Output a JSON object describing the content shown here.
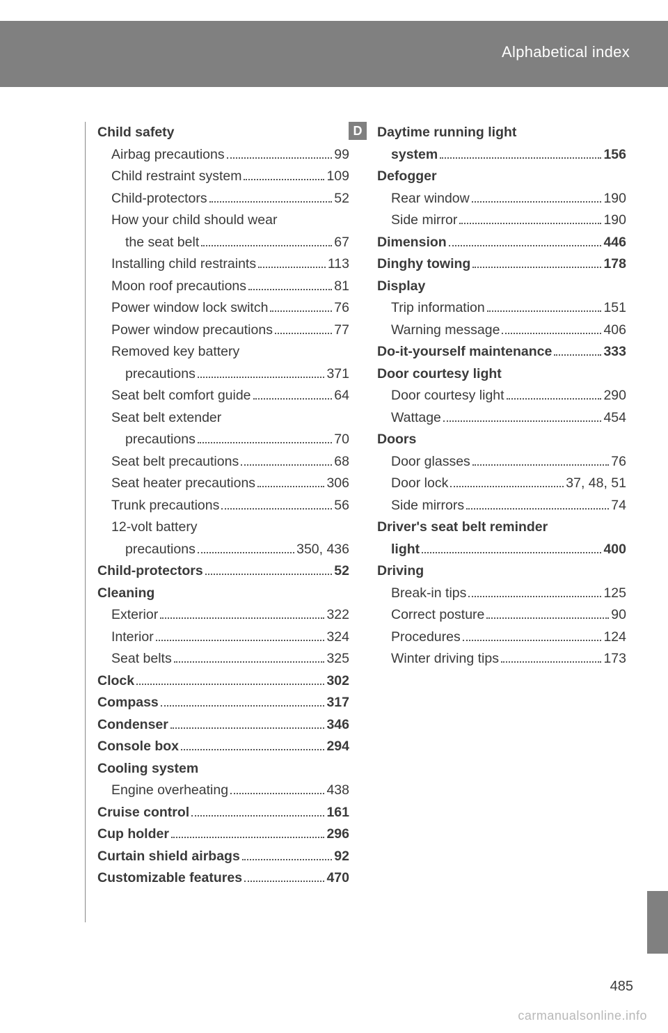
{
  "header": {
    "title": "Alphabetical index"
  },
  "letter": "D",
  "pageNumber": "485",
  "watermark": "carmanualsonline.info",
  "left": [
    {
      "t": "head",
      "label": "Child safety"
    },
    {
      "t": "sub",
      "label": "Airbag precautions",
      "page": "99"
    },
    {
      "t": "sub",
      "label": "Child restraint system",
      "page": "109"
    },
    {
      "t": "sub",
      "label": "Child-protectors",
      "page": "52"
    },
    {
      "t": "sub",
      "label": "How your child should wear"
    },
    {
      "t": "cont",
      "label": "the seat belt",
      "page": "67"
    },
    {
      "t": "sub",
      "label": "Installing child restraints",
      "page": "113"
    },
    {
      "t": "sub",
      "label": "Moon roof precautions",
      "page": "81"
    },
    {
      "t": "sub",
      "label": "Power window lock switch",
      "page": "76"
    },
    {
      "t": "sub",
      "label": "Power window precautions",
      "page": "77"
    },
    {
      "t": "sub",
      "label": "Removed key battery"
    },
    {
      "t": "cont",
      "label": "precautions",
      "page": "371"
    },
    {
      "t": "sub",
      "label": "Seat belt comfort guide",
      "page": "64"
    },
    {
      "t": "sub",
      "label": "Seat belt extender"
    },
    {
      "t": "cont",
      "label": "precautions",
      "page": "70"
    },
    {
      "t": "sub",
      "label": "Seat belt precautions",
      "page": "68"
    },
    {
      "t": "sub",
      "label": "Seat heater precautions",
      "page": "306"
    },
    {
      "t": "sub",
      "label": "Trunk precautions",
      "page": "56"
    },
    {
      "t": "sub",
      "label": "12-volt battery"
    },
    {
      "t": "cont",
      "label": "precautions",
      "page": "350, 436"
    },
    {
      "t": "entry",
      "label": "Child-protectors",
      "page": "52"
    },
    {
      "t": "head",
      "label": "Cleaning"
    },
    {
      "t": "sub",
      "label": "Exterior",
      "page": "322"
    },
    {
      "t": "sub",
      "label": "Interior",
      "page": "324"
    },
    {
      "t": "sub",
      "label": "Seat belts",
      "page": "325"
    },
    {
      "t": "entry",
      "label": "Clock",
      "page": "302"
    },
    {
      "t": "entry",
      "label": "Compass",
      "page": "317"
    },
    {
      "t": "entry",
      "label": "Condenser",
      "page": "346"
    },
    {
      "t": "entry",
      "label": "Console box",
      "page": "294"
    },
    {
      "t": "head",
      "label": "Cooling system"
    },
    {
      "t": "sub",
      "label": "Engine overheating",
      "page": "438"
    },
    {
      "t": "entry",
      "label": "Cruise control",
      "page": "161"
    },
    {
      "t": "entry",
      "label": "Cup holder",
      "page": "296"
    },
    {
      "t": "entry",
      "label": "Curtain shield airbags",
      "page": "92"
    },
    {
      "t": "entry",
      "label": "Customizable features",
      "page": "470"
    }
  ],
  "right": [
    {
      "t": "head",
      "label": "Daytime running light"
    },
    {
      "t": "entrycont",
      "label": "system",
      "page": "156"
    },
    {
      "t": "head",
      "label": "Defogger"
    },
    {
      "t": "sub",
      "label": "Rear window",
      "page": "190"
    },
    {
      "t": "sub",
      "label": "Side mirror",
      "page": "190"
    },
    {
      "t": "entry",
      "label": "Dimension",
      "page": "446"
    },
    {
      "t": "entry",
      "label": "Dinghy towing",
      "page": "178"
    },
    {
      "t": "head",
      "label": "Display"
    },
    {
      "t": "sub",
      "label": "Trip information",
      "page": "151"
    },
    {
      "t": "sub",
      "label": "Warning message",
      "page": "406"
    },
    {
      "t": "entry",
      "label": "Do-it-yourself maintenance",
      "page": "333"
    },
    {
      "t": "head",
      "label": "Door courtesy light"
    },
    {
      "t": "sub",
      "label": "Door courtesy light",
      "page": "290"
    },
    {
      "t": "sub",
      "label": "Wattage",
      "page": "454"
    },
    {
      "t": "head",
      "label": "Doors"
    },
    {
      "t": "sub",
      "label": "Door glasses",
      "page": "76"
    },
    {
      "t": "sub",
      "label": "Door lock",
      "page": "37, 48, 51"
    },
    {
      "t": "sub",
      "label": "Side mirrors",
      "page": "74"
    },
    {
      "t": "head",
      "label": "Driver's seat belt reminder"
    },
    {
      "t": "entrycont",
      "label": "light",
      "page": "400"
    },
    {
      "t": "head",
      "label": "Driving"
    },
    {
      "t": "sub",
      "label": "Break-in tips",
      "page": "125"
    },
    {
      "t": "sub",
      "label": "Correct posture",
      "page": "90"
    },
    {
      "t": "sub",
      "label": "Procedures",
      "page": "124"
    },
    {
      "t": "sub",
      "label": "Winter driving tips",
      "page": "173"
    }
  ]
}
